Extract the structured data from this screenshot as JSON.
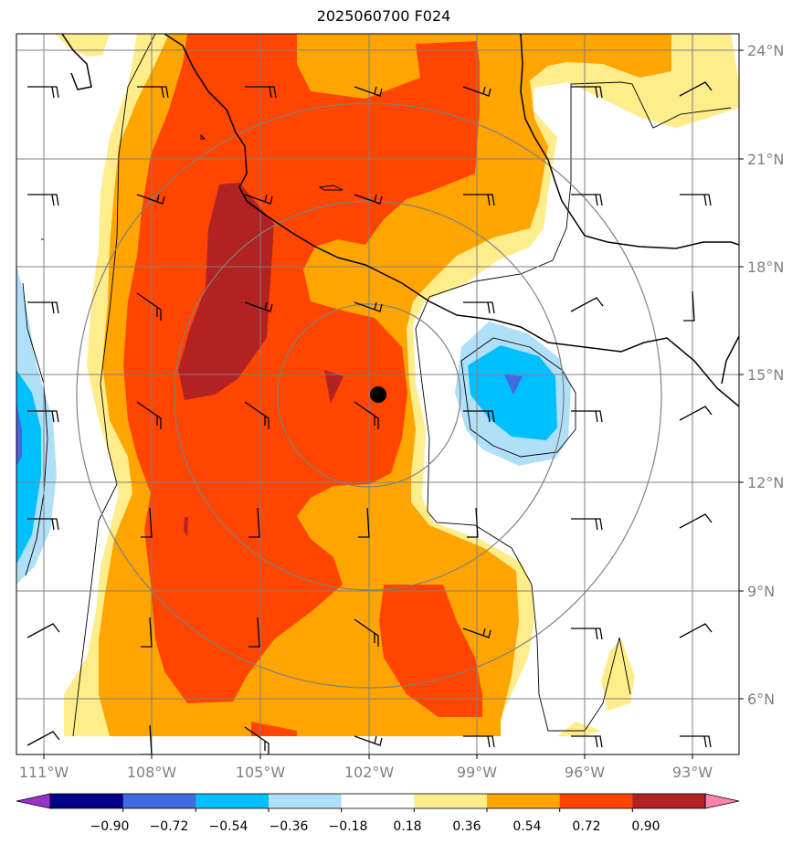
{
  "title": "2025060700 F024",
  "map": {
    "lon_range": [
      -112,
      -92
    ],
    "lat_range": [
      4.5,
      24.5
    ],
    "lon_ticks": [
      "111°W",
      "108°W",
      "105°W",
      "102°W",
      "99°W",
      "96°W",
      "93°W"
    ],
    "lat_ticks": [
      "24°N",
      "21°N",
      "18°N",
      "15°N",
      "12°N",
      "9°N",
      "6°N"
    ],
    "storm_center": {
      "lon": -101.75,
      "lat": 14.55
    },
    "range_rings_deg": [
      2,
      5,
      8
    ]
  },
  "colorbar": {
    "levels": [
      "−0.90",
      "−0.72",
      "−0.54",
      "−0.36",
      "−0.18",
      "0.18",
      "0.36",
      "0.54",
      "0.72",
      "0.90"
    ],
    "colors": [
      "#9932cc",
      "#00008b",
      "#4169e1",
      "#00bfff",
      "#b0e0f8",
      "#ffffff",
      "#ffec8b",
      "#ffa500",
      "#ff4500",
      "#b22222",
      "#ff82ab"
    ]
  },
  "icons": {
    "storm_center": "filled-circle",
    "wind": "wind-barb"
  }
}
